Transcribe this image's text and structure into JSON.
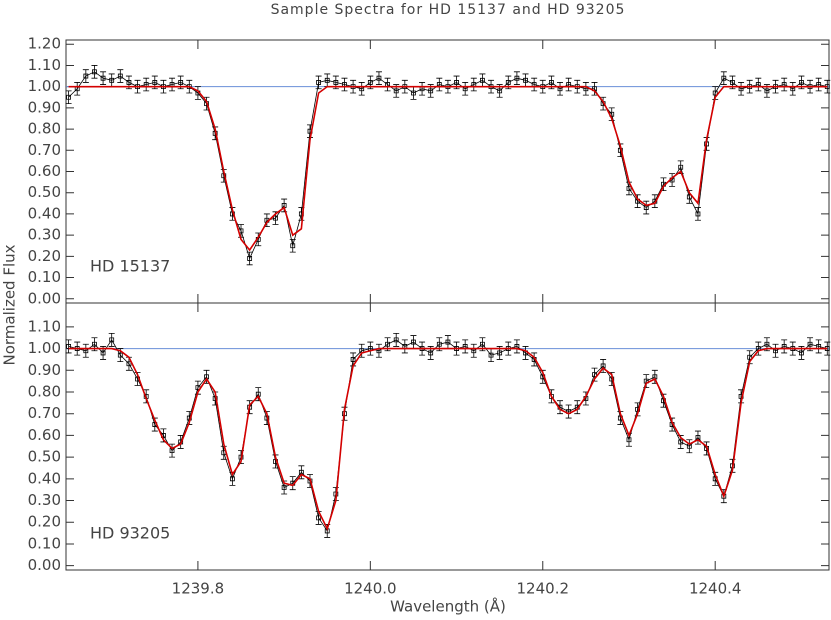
{
  "title": "Sample Spectra for HD 15137 and HD 93205",
  "x_label": "Wavelength (Å)",
  "y_label": "Normalized Flux",
  "chart_data": [
    {
      "type": "line",
      "label": "HD 15137",
      "x": [
        1239.65,
        1239.66,
        1239.67,
        1239.68,
        1239.69,
        1239.7,
        1239.71,
        1239.72,
        1239.73,
        1239.74,
        1239.75,
        1239.76,
        1239.77,
        1239.78,
        1239.79,
        1239.8,
        1239.81,
        1239.82,
        1239.83,
        1239.84,
        1239.85,
        1239.86,
        1239.87,
        1239.88,
        1239.89,
        1239.9,
        1239.91,
        1239.92,
        1239.93,
        1239.94,
        1239.95,
        1239.96,
        1239.97,
        1239.98,
        1239.99,
        1240.0,
        1240.01,
        1240.02,
        1240.03,
        1240.04,
        1240.05,
        1240.06,
        1240.07,
        1240.08,
        1240.09,
        1240.1,
        1240.11,
        1240.12,
        1240.13,
        1240.14,
        1240.15,
        1240.16,
        1240.17,
        1240.18,
        1240.19,
        1240.2,
        1240.21,
        1240.22,
        1240.23,
        1240.24,
        1240.25,
        1240.26,
        1240.27,
        1240.28,
        1240.29,
        1240.3,
        1240.31,
        1240.32,
        1240.33,
        1240.34,
        1240.35,
        1240.36,
        1240.37,
        1240.38,
        1240.39,
        1240.4,
        1240.41,
        1240.42,
        1240.43,
        1240.44,
        1240.45,
        1240.46,
        1240.47,
        1240.48,
        1240.49,
        1240.5,
        1240.51,
        1240.52,
        1240.53
      ],
      "xlim": [
        1239.647,
        1240.532
      ],
      "xticks": [
        1239.8,
        {
          "value": 1240,
          "label": "1240.0"
        },
        1240.2,
        1240.4
      ],
      "ylim": [
        -0.02,
        1.22
      ],
      "yticks": [
        {
          "value": 0,
          "label": "0.00"
        },
        {
          "value": 0.1,
          "label": "0.10"
        },
        {
          "value": 0.2,
          "label": "0.20"
        },
        {
          "value": 0.3,
          "label": "0.30"
        },
        {
          "value": 0.4,
          "label": "0.40"
        },
        {
          "value": 0.5,
          "label": "0.50"
        },
        {
          "value": 0.6,
          "label": "0.60"
        },
        {
          "value": 0.7,
          "label": "0.70"
        },
        {
          "value": 0.8,
          "label": "0.80"
        },
        {
          "value": 0.9,
          "label": "0.90"
        },
        {
          "value": 1,
          "label": "1.00"
        },
        {
          "value": 1.1,
          "label": "1.10"
        },
        {
          "value": 1.2,
          "label": "1.20"
        }
      ],
      "continuum": 1,
      "continuum_color": "#6a8fd8",
      "series": [
        {
          "color": "#000000",
          "error": 0.03,
          "values": [
            0.95,
            0.99,
            1.05,
            1.07,
            1.04,
            1.03,
            1.05,
            1.02,
            1.0,
            1.01,
            1.02,
            1.0,
            1.01,
            1.02,
            1.0,
            0.97,
            0.92,
            0.78,
            0.58,
            0.4,
            0.32,
            0.19,
            0.28,
            0.37,
            0.38,
            0.44,
            0.25,
            0.4,
            0.79,
            1.02,
            1.03,
            1.02,
            1.01,
            1.0,
            0.99,
            1.02,
            1.04,
            1.01,
            0.98,
            1.0,
            0.97,
            0.99,
            0.98,
            1.01,
            1.0,
            1.02,
            0.99,
            1.01,
            1.03,
            1.0,
            0.98,
            1.02,
            1.04,
            1.03,
            1.01,
            1.0,
            1.02,
            0.99,
            1.01,
            1.0,
            0.99,
            0.99,
            0.92,
            0.87,
            0.7,
            0.52,
            0.46,
            0.43,
            0.46,
            0.54,
            0.56,
            0.62,
            0.48,
            0.4,
            0.73,
            0.97,
            1.04,
            1.02,
            0.99,
            1.0,
            1.01,
            0.98,
            1.0,
            1.01,
            0.99,
            1.02,
            1.0,
            1.01,
            1.0
          ]
        },
        {
          "color": "#d40000",
          "values": [
            1.0,
            1.0,
            1.0,
            1.0,
            1.0,
            1.0,
            1.0,
            1.0,
            1.0,
            1.0,
            1.0,
            1.0,
            1.0,
            1.0,
            1.0,
            0.98,
            0.93,
            0.8,
            0.6,
            0.42,
            0.28,
            0.23,
            0.29,
            0.36,
            0.4,
            0.43,
            0.3,
            0.33,
            0.75,
            0.97,
            1.0,
            1.0,
            1.0,
            1.0,
            1.0,
            1.0,
            1.0,
            1.0,
            1.0,
            1.0,
            1.0,
            1.0,
            1.0,
            1.0,
            1.0,
            1.0,
            1.0,
            1.0,
            1.0,
            1.0,
            1.0,
            1.0,
            1.0,
            1.0,
            1.0,
            1.0,
            1.0,
            1.0,
            1.0,
            1.0,
            1.0,
            0.98,
            0.93,
            0.85,
            0.72,
            0.55,
            0.47,
            0.44,
            0.45,
            0.53,
            0.57,
            0.6,
            0.5,
            0.45,
            0.75,
            0.95,
            1.0,
            1.0,
            1.0,
            1.0,
            1.0,
            1.0,
            1.0,
            1.0,
            1.0,
            1.0,
            1.0,
            1.0,
            1.0
          ]
        }
      ]
    },
    {
      "type": "line",
      "label": "HD 93205",
      "x": [
        1239.65,
        1239.66,
        1239.67,
        1239.68,
        1239.69,
        1239.7,
        1239.71,
        1239.72,
        1239.73,
        1239.74,
        1239.75,
        1239.76,
        1239.77,
        1239.78,
        1239.79,
        1239.8,
        1239.81,
        1239.82,
        1239.83,
        1239.84,
        1239.85,
        1239.86,
        1239.87,
        1239.88,
        1239.89,
        1239.9,
        1239.91,
        1239.92,
        1239.93,
        1239.94,
        1239.95,
        1239.96,
        1239.97,
        1239.98,
        1239.99,
        1240.0,
        1240.01,
        1240.02,
        1240.03,
        1240.04,
        1240.05,
        1240.06,
        1240.07,
        1240.08,
        1240.09,
        1240.1,
        1240.11,
        1240.12,
        1240.13,
        1240.14,
        1240.15,
        1240.16,
        1240.17,
        1240.18,
        1240.19,
        1240.2,
        1240.21,
        1240.22,
        1240.23,
        1240.24,
        1240.25,
        1240.26,
        1240.27,
        1240.28,
        1240.29,
        1240.3,
        1240.31,
        1240.32,
        1240.33,
        1240.34,
        1240.35,
        1240.36,
        1240.37,
        1240.38,
        1240.39,
        1240.4,
        1240.41,
        1240.42,
        1240.43,
        1240.44,
        1240.45,
        1240.46,
        1240.47,
        1240.48,
        1240.49,
        1240.5,
        1240.51,
        1240.52,
        1240.53
      ],
      "xlim": [
        1239.647,
        1240.532
      ],
      "xticks": [
        1239.8,
        {
          "value": 1240,
          "label": "1240.0"
        },
        1240.2,
        1240.4
      ],
      "ylim": [
        -0.02,
        1.21
      ],
      "yticks": [
        {
          "value": 0,
          "label": "0.00"
        },
        {
          "value": 0.1,
          "label": "0.10"
        },
        {
          "value": 0.2,
          "label": "0.20"
        },
        {
          "value": 0.3,
          "label": "0.30"
        },
        {
          "value": 0.4,
          "label": "0.40"
        },
        {
          "value": 0.5,
          "label": "0.50"
        },
        {
          "value": 0.6,
          "label": "0.60"
        },
        {
          "value": 0.7,
          "label": "0.70"
        },
        {
          "value": 0.8,
          "label": "0.80"
        },
        {
          "value": 0.9,
          "label": "0.90"
        },
        {
          "value": 1,
          "label": "1.00"
        },
        {
          "value": 1.1,
          "label": "1.10"
        }
      ],
      "continuum": 1,
      "continuum_color": "#6a8fd8",
      "series": [
        {
          "color": "#000000",
          "error": 0.03,
          "values": [
            1.01,
            1.0,
            0.99,
            1.02,
            0.98,
            1.04,
            0.97,
            0.93,
            0.86,
            0.78,
            0.65,
            0.6,
            0.53,
            0.57,
            0.68,
            0.82,
            0.87,
            0.77,
            0.52,
            0.4,
            0.5,
            0.73,
            0.79,
            0.68,
            0.48,
            0.36,
            0.38,
            0.43,
            0.39,
            0.22,
            0.16,
            0.33,
            0.7,
            0.95,
            0.99,
            1.0,
            0.99,
            1.02,
            1.04,
            1.01,
            1.03,
            1.0,
            0.98,
            1.02,
            1.03,
            1.0,
            1.01,
            0.99,
            1.02,
            0.97,
            0.98,
            1.0,
            1.01,
            0.98,
            0.95,
            0.87,
            0.78,
            0.73,
            0.71,
            0.73,
            0.77,
            0.88,
            0.92,
            0.86,
            0.68,
            0.58,
            0.72,
            0.85,
            0.87,
            0.76,
            0.65,
            0.57,
            0.55,
            0.59,
            0.54,
            0.4,
            0.32,
            0.46,
            0.78,
            0.96,
            1.0,
            1.02,
            0.99,
            1.01,
            1.0,
            0.98,
            1.02,
            1.01,
            1.0
          ]
        },
        {
          "color": "#d40000",
          "values": [
            1.0,
            1.0,
            1.0,
            1.0,
            1.0,
            1.0,
            0.99,
            0.96,
            0.88,
            0.77,
            0.67,
            0.58,
            0.54,
            0.56,
            0.66,
            0.8,
            0.86,
            0.8,
            0.56,
            0.42,
            0.48,
            0.74,
            0.78,
            0.7,
            0.5,
            0.38,
            0.37,
            0.42,
            0.4,
            0.25,
            0.17,
            0.3,
            0.72,
            0.92,
            0.98,
            0.99,
            1.0,
            1.0,
            1.0,
            1.0,
            1.0,
            1.0,
            1.0,
            1.0,
            1.0,
            1.0,
            1.0,
            1.0,
            1.0,
            1.0,
            1.0,
            1.0,
            1.0,
            0.99,
            0.96,
            0.89,
            0.78,
            0.72,
            0.7,
            0.72,
            0.78,
            0.86,
            0.91,
            0.88,
            0.7,
            0.6,
            0.7,
            0.84,
            0.86,
            0.78,
            0.66,
            0.59,
            0.56,
            0.58,
            0.55,
            0.42,
            0.32,
            0.44,
            0.75,
            0.94,
            0.99,
            1.0,
            1.0,
            1.0,
            1.0,
            1.0,
            1.0,
            1.0,
            1.0
          ]
        }
      ]
    }
  ]
}
